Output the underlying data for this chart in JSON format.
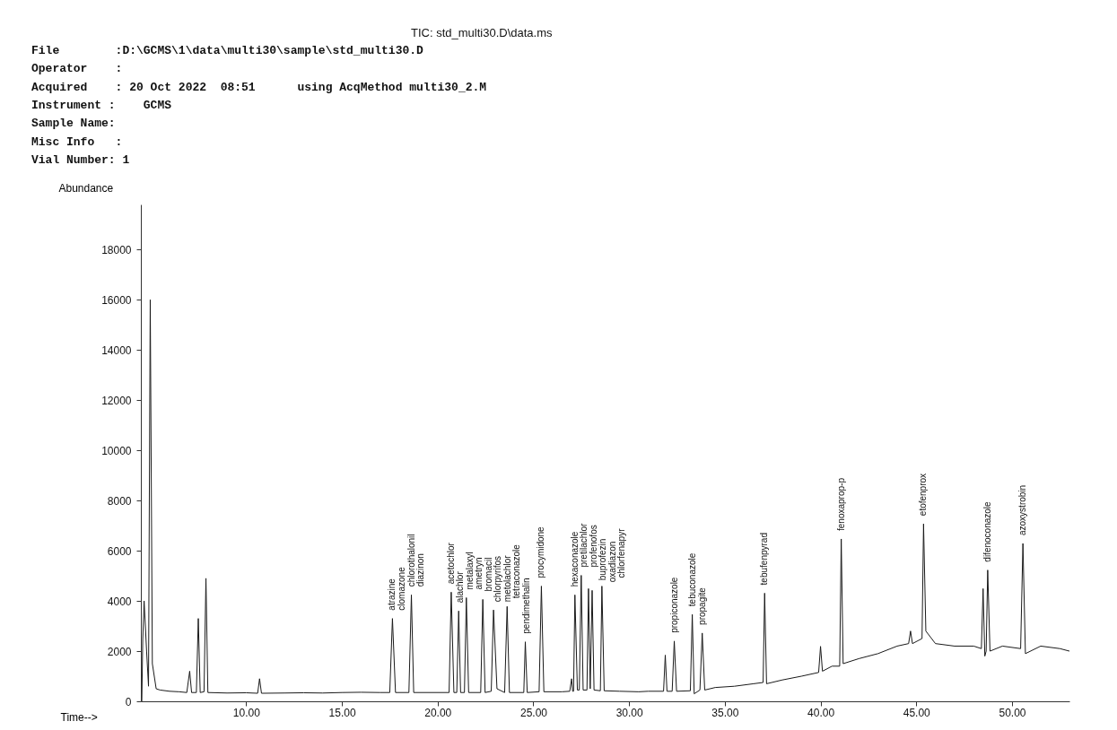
{
  "chart_data": {
    "type": "line",
    "title": "TIC: std_multi30.D\\data.ms",
    "xlabel": "Time-->",
    "ylabel": "Abundance",
    "xlim": [
      4.5,
      53
    ],
    "ylim": [
      0,
      19800
    ],
    "xticks": [
      {
        "value": 10,
        "label": "10.00"
      },
      {
        "value": 15,
        "label": "15.00"
      },
      {
        "value": 20,
        "label": "20.00"
      },
      {
        "value": 25,
        "label": "25.00"
      },
      {
        "value": 30,
        "label": "30.00"
      },
      {
        "value": 35,
        "label": "35.00"
      },
      {
        "value": 40,
        "label": "40.00"
      },
      {
        "value": 45,
        "label": "45.00"
      },
      {
        "value": 50,
        "label": "50.00"
      }
    ],
    "yticks": [
      0,
      2000,
      4000,
      6000,
      8000,
      10000,
      12000,
      14000,
      16000,
      18000
    ],
    "grid": false,
    "line_style": "solid",
    "series": [
      {
        "color": "#1a1a1a",
        "x": [
          4.55,
          4.6,
          4.67,
          4.8,
          4.9,
          4.99,
          5.1,
          5.3,
          5.5,
          6,
          6.5,
          6.9,
          7.05,
          7.15,
          7.4,
          7.5,
          7.6,
          7.8,
          7.9,
          8.0,
          9,
          10,
          10.6,
          10.7,
          10.8,
          12,
          13,
          14,
          15,
          16,
          17,
          17.5,
          17.64,
          17.8,
          18.5,
          18.63,
          18.75,
          20.6,
          20.71,
          20.85,
          21.0,
          21.1,
          21.2,
          21.4,
          21.5,
          21.62,
          22.25,
          22.36,
          22.48,
          22.8,
          22.92,
          23.1,
          23.5,
          23.63,
          23.75,
          24.5,
          24.58,
          24.68,
          25.3,
          25.42,
          25.55,
          26.5,
          26.9,
          27.0,
          27.05,
          27.1,
          27.17,
          27.3,
          27.4,
          27.5,
          27.6,
          27.8,
          27.88,
          27.97,
          28.07,
          28.17,
          28.5,
          28.58,
          28.7,
          29.5,
          30.5,
          31,
          31.8,
          31.89,
          31.98,
          32.25,
          32.36,
          32.48,
          33.2,
          33.3,
          33.4,
          33.7,
          33.82,
          33.95,
          34.5,
          35.5,
          36.5,
          37.0,
          37.08,
          37.18,
          38,
          39,
          39.9,
          40.0,
          40.1,
          40.6,
          41.0,
          41.08,
          41.18,
          42,
          43,
          44,
          44.6,
          44.7,
          44.8,
          45.3,
          45.38,
          45.5,
          46,
          47,
          48,
          48.4,
          48.49,
          48.58,
          48.65,
          48.73,
          48.85,
          49.5,
          50.45,
          50.57,
          50.7,
          51.5,
          52.5,
          53
        ],
        "values": [
          0,
          2500,
          4000,
          2000,
          600,
          16000,
          1500,
          500,
          450,
          400,
          380,
          350,
          1200,
          350,
          350,
          3300,
          350,
          380,
          4900,
          350,
          330,
          340,
          320,
          900,
          320,
          330,
          340,
          330,
          350,
          360,
          350,
          350,
          3300,
          350,
          350,
          4240,
          350,
          350,
          4350,
          350,
          350,
          3600,
          350,
          350,
          4130,
          350,
          350,
          4060,
          350,
          400,
          3640,
          500,
          350,
          3780,
          350,
          350,
          2370,
          350,
          380,
          4590,
          380,
          380,
          400,
          900,
          400,
          400,
          4240,
          450,
          450,
          5020,
          450,
          450,
          4490,
          500,
          4420,
          450,
          420,
          4590,
          420,
          400,
          380,
          400,
          400,
          1840,
          400,
          400,
          2400,
          400,
          420,
          3460,
          300,
          450,
          2720,
          450,
          550,
          600,
          700,
          750,
          4310,
          700,
          850,
          1000,
          1150,
          2190,
          1200,
          1400,
          1400,
          6470,
          1500,
          1700,
          1900,
          2200,
          2300,
          2800,
          2300,
          2500,
          7070,
          2800,
          2300,
          2200,
          2200,
          2100,
          4490,
          1800,
          2000,
          5230,
          2000,
          2200,
          2100,
          6290,
          1900,
          2200,
          2100,
          2000
        ]
      }
    ],
    "annotations": [
      "File        :D:\\GCMS\\1\\data\\multi30\\sample\\std_multi30.D",
      "Operator    :",
      "Acquired    : 20 Oct 2022  08:51      using AcqMethod multi30_2.M",
      "Instrument :    GCMS",
      "Sample Name:",
      "Misc Info   :",
      "Vial Number: 1",
      {
        "text": "atrazine",
        "x": 17.64,
        "y": 3300
      },
      {
        "text": "clomazone",
        "x": 17.64,
        "y": 3300
      },
      {
        "text": "chlorothalonil",
        "x": 18.63,
        "y": 4240
      },
      {
        "text": "diazinon",
        "x": 18.63,
        "y": 4240
      },
      {
        "text": "acetochlor",
        "x": 20.71,
        "y": 4350
      },
      {
        "text": "alachlor",
        "x": 21.1,
        "y": 3600
      },
      {
        "text": "metalaxyl",
        "x": 21.5,
        "y": 4130
      },
      {
        "text": "ametryn",
        "x": 21.5,
        "y": 4130
      },
      {
        "text": "bromacil",
        "x": 22.36,
        "y": 4060
      },
      {
        "text": "chlorpyrifos",
        "x": 22.92,
        "y": 3640
      },
      {
        "text": "metolachlor",
        "x": 22.92,
        "y": 3640
      },
      {
        "text": "tetraconazole",
        "x": 23.63,
        "y": 3780
      },
      {
        "text": "pendimethalin",
        "x": 24.58,
        "y": 2370
      },
      {
        "text": "procymidone",
        "x": 25.42,
        "y": 4590
      },
      {
        "text": "hexaconazole",
        "x": 27.17,
        "y": 4240
      },
      {
        "text": "pretilachlor",
        "x": 27.5,
        "y": 5020
      },
      {
        "text": "profenofos",
        "x": 27.5,
        "y": 5020
      },
      {
        "text": "buprofezin",
        "x": 27.88,
        "y": 4490
      },
      {
        "text": "oxadiazon",
        "x": 28.07,
        "y": 4420
      },
      {
        "text": "chlorfenapyr",
        "x": 28.58,
        "y": 4590
      },
      {
        "text": "propiconazole",
        "x": 32.36,
        "y": 2400
      },
      {
        "text": "tebuconazole",
        "x": 33.3,
        "y": 3460
      },
      {
        "text": "propagite",
        "x": 33.82,
        "y": 2720
      },
      {
        "text": "tebufenpyrad",
        "x": 37.08,
        "y": 4310
      },
      {
        "text": "fenoxaprop-p",
        "x": 41.08,
        "y": 6470
      },
      {
        "text": "etofenprox",
        "x": 45.38,
        "y": 7070
      },
      {
        "text": "difenoconazole",
        "x": 48.73,
        "y": 5230
      },
      {
        "text": "azoxystrobin",
        "x": 50.57,
        "y": 6290
      }
    ]
  }
}
